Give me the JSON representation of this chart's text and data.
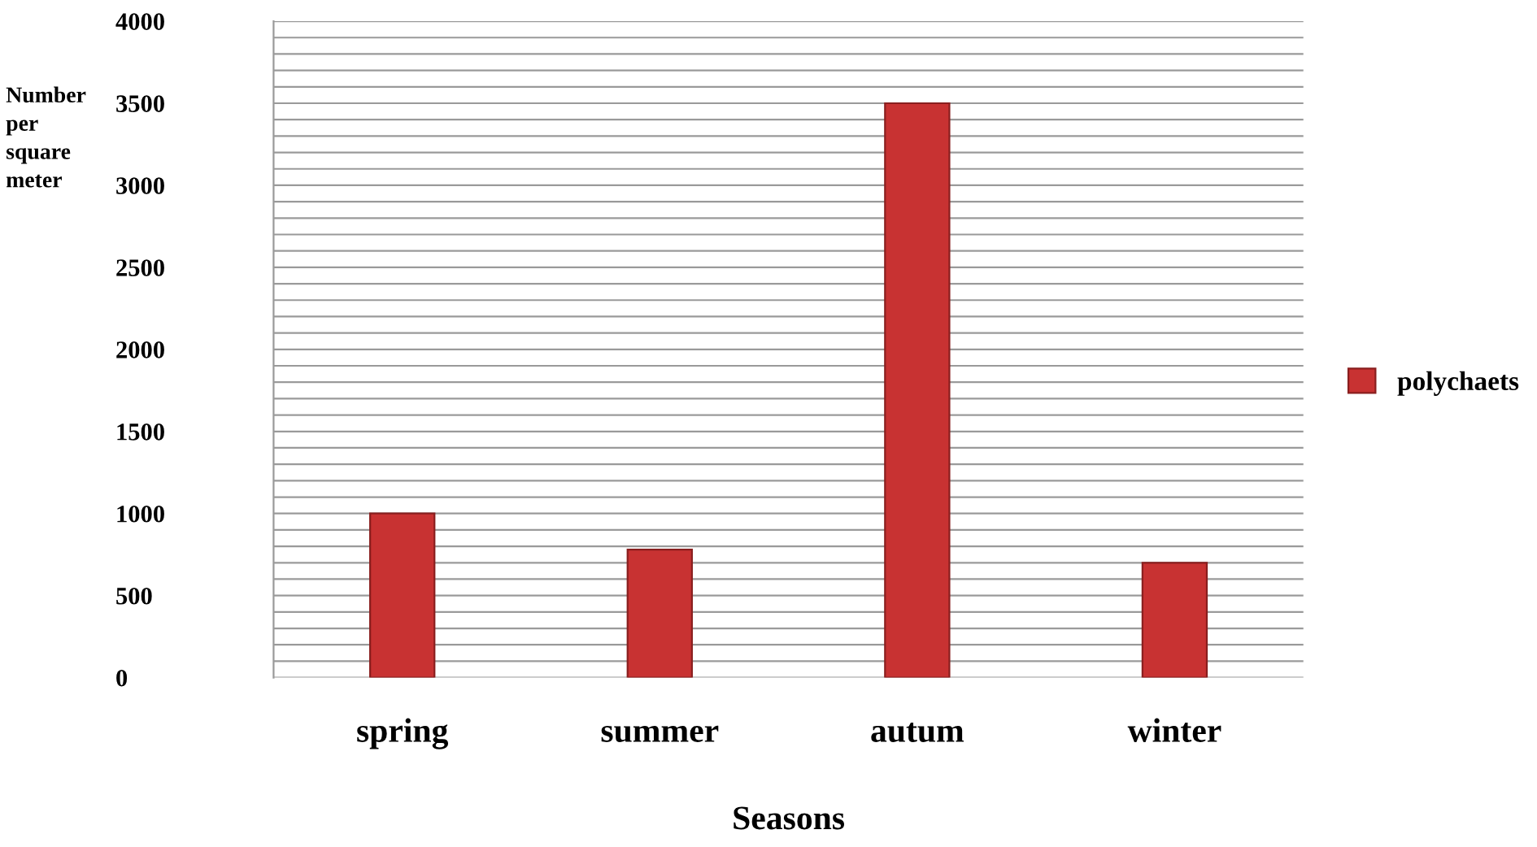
{
  "chart_data": {
    "type": "bar",
    "xlabel": "Seasons",
    "ylabel": "Number\nper\nsquare\nmeter",
    "categories": [
      "spring",
      "summer",
      "autum",
      "winter"
    ],
    "series": [
      {
        "name": "polychaets",
        "color": "#c83232",
        "values": [
          1000,
          780,
          3500,
          700
        ]
      }
    ],
    "ylim": [
      0,
      4000
    ],
    "yticks": [
      0,
      {
        "value": 100,
        "label": null
      },
      {
        "value": 200,
        "label": null
      },
      {
        "value": 300,
        "label": null
      },
      {
        "value": 400,
        "label": null
      },
      500,
      {
        "value": 600,
        "label": null
      },
      {
        "value": 700,
        "label": null
      },
      {
        "value": 800,
        "label": null
      },
      {
        "value": 900,
        "label": null
      },
      1000,
      {
        "value": 1100,
        "label": null
      },
      {
        "value": 1200,
        "label": null
      },
      {
        "value": 1300,
        "label": null
      },
      {
        "value": 1400,
        "label": null
      },
      1500,
      {
        "value": 1600,
        "label": null
      },
      {
        "value": 1700,
        "label": null
      },
      {
        "value": 1800,
        "label": null
      },
      {
        "value": 1900,
        "label": null
      },
      2000,
      {
        "value": 2100,
        "label": null
      },
      {
        "value": 2200,
        "label": null
      },
      {
        "value": 2300,
        "label": null
      },
      {
        "value": 2400,
        "label": null
      },
      2500,
      {
        "value": 2600,
        "label": null
      },
      {
        "value": 2700,
        "label": null
      },
      {
        "value": 2800,
        "label": null
      },
      {
        "value": 2900,
        "label": null
      },
      3000,
      {
        "value": 3100,
        "label": null
      },
      {
        "value": 3200,
        "label": null
      },
      {
        "value": 3300,
        "label": null
      },
      {
        "value": 3400,
        "label": null
      },
      3500,
      {
        "value": 3600,
        "label": null
      },
      {
        "value": 3700,
        "label": null
      },
      {
        "value": 3800,
        "label": null
      },
      {
        "value": 3900,
        "label": null
      },
      4000
    ],
    "grid": "y",
    "legend": "right"
  }
}
